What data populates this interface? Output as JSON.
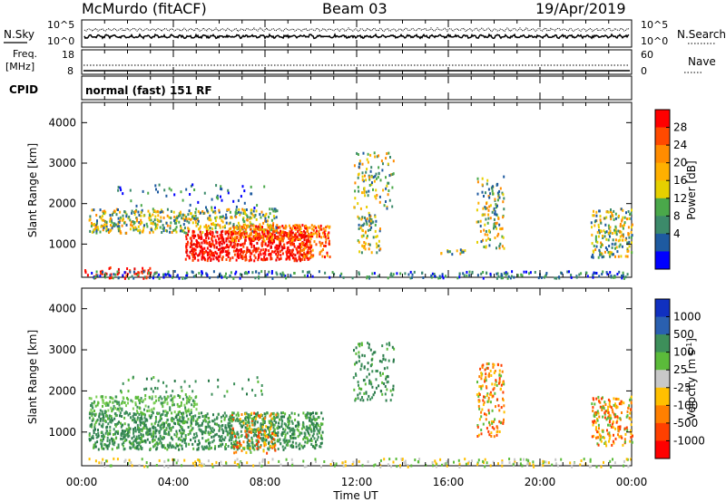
{
  "header": {
    "station": "McMurdo (fitACF)",
    "beam": "Beam 03",
    "date": "19/Apr/2019"
  },
  "noise_panel": {
    "left_label": "N.Sky",
    "right_label": "N.Search",
    "left_ticks": [
      "10^5",
      "10^0"
    ],
    "right_ticks": [
      "10^5",
      "10^0"
    ]
  },
  "freq_panel": {
    "left_label_1": "Freq.",
    "left_label_2": "[MHz]",
    "right_label": "Nave",
    "left_ticks": [
      "18",
      "8"
    ],
    "right_ticks": [
      "60",
      "0"
    ]
  },
  "cpid_panel": {
    "label": "CPID",
    "text": "normal (fast) 151 RF"
  },
  "chart_data": [
    {
      "type": "heatmap",
      "quantity": "Power",
      "ylabel": "Slant Range [km]",
      "ylim": [
        180,
        4500
      ],
      "yticks": [
        1000,
        2000,
        3000,
        4000
      ],
      "xlim_hours": [
        0,
        24
      ],
      "xticks": [
        "00:00",
        "04:00",
        "08:00",
        "12:00",
        "16:00",
        "20:00",
        "00:00"
      ],
      "colorbar_label": "Power [dB]",
      "colorbar_ticks": [
        "28",
        "24",
        "20",
        "16",
        "12",
        "8",
        "4"
      ],
      "colorbar_colors": [
        "#ff0000",
        "#ff4a00",
        "#ff8c00",
        "#ffb000",
        "#e6d000",
        "#4aa84a",
        "#3c8a6a",
        "#1e5aa0",
        "#0000ff"
      ]
    },
    {
      "type": "heatmap",
      "quantity": "Velocity",
      "ylabel": "Slant Range [km]",
      "ylim": [
        180,
        4500
      ],
      "yticks": [
        1000,
        2000,
        3000,
        4000
      ],
      "xlim_hours": [
        0,
        24
      ],
      "xticks": [
        "00:00",
        "04:00",
        "08:00",
        "12:00",
        "16:00",
        "20:00",
        "00:00"
      ],
      "xlabel": "Time UT",
      "colorbar_label": "Velocity [m s",
      "colorbar_label_sup": "-1",
      "colorbar_label_end": "]",
      "colorbar_ticks": [
        "1000",
        "500",
        "100",
        "25",
        "-25",
        "-100",
        "-500",
        "-1000"
      ],
      "colorbar_colors": [
        "#1030c0",
        "#2a60b0",
        "#3d8f5a",
        "#5bbb3a",
        "#c8c8c8",
        "#ffc000",
        "#ff8000",
        "#ff4000",
        "#ff0000"
      ]
    }
  ]
}
